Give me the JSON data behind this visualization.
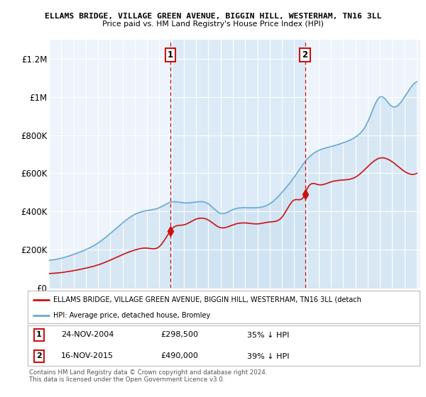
{
  "title": "ELLAMS BRIDGE, VILLAGE GREEN AVENUE, BIGGIN HILL, WESTERHAM, TN16 3LL",
  "subtitle": "Price paid vs. HM Land Registry's House Price Index (HPI)",
  "bg_color": "#eef4fb",
  "hpi_color": "#6aaad4",
  "hpi_fill_color": "#c8dff0",
  "price_color": "#cc1111",
  "vline_color": "#cc1111",
  "shade_color": "#daeaf7",
  "ylim": [
    0,
    1300000
  ],
  "yticks": [
    0,
    200000,
    400000,
    600000,
    800000,
    1000000,
    1200000
  ],
  "ytick_labels": [
    "£0",
    "£200K",
    "£400K",
    "£600K",
    "£800K",
    "£1M",
    "£1.2M"
  ],
  "sale1_date": 2004.9,
  "sale1_price": 298500,
  "sale2_date": 2015.88,
  "sale2_price": 490000,
  "legend_entry1": "ELLAMS BRIDGE, VILLAGE GREEN AVENUE, BIGGIN HILL, WESTERHAM, TN16 3LL (detach",
  "legend_entry2": "HPI: Average price, detached house, Bromley",
  "copyright": "Contains HM Land Registry data © Crown copyright and database right 2024.\nThis data is licensed under the Open Government Licence v3.0.",
  "hpi_keypoints_x": [
    1995,
    1996,
    1997,
    1998,
    1999,
    2000,
    2001,
    2002,
    2003,
    2004,
    2005,
    2006,
    2007,
    2008,
    2009,
    2010,
    2011,
    2012,
    2013,
    2014,
    2015,
    2016,
    2017,
    2018,
    2019,
    2020,
    2021,
    2022,
    2023,
    2024,
    2025
  ],
  "hpi_keypoints_y": [
    145000,
    155000,
    175000,
    200000,
    235000,
    285000,
    340000,
    385000,
    405000,
    420000,
    450000,
    445000,
    450000,
    440000,
    390000,
    410000,
    420000,
    420000,
    440000,
    500000,
    580000,
    670000,
    720000,
    740000,
    760000,
    790000,
    870000,
    1000000,
    950000,
    1000000,
    1080000
  ],
  "price_keypoints_x": [
    1995,
    1996,
    1997,
    1998,
    1999,
    2000,
    2001,
    2002,
    2003,
    2004,
    2004.9,
    2005,
    2006,
    2007,
    2008,
    2009,
    2010,
    2011,
    2012,
    2013,
    2014,
    2015,
    2015.88,
    2016,
    2017,
    2018,
    2019,
    2020,
    2021,
    2022,
    2023,
    2024,
    2025
  ],
  "price_keypoints_y": [
    75000,
    80000,
    90000,
    103000,
    120000,
    145000,
    174000,
    198000,
    208000,
    216000,
    298500,
    307000,
    330000,
    360000,
    355000,
    315000,
    330000,
    340000,
    335000,
    345000,
    370000,
    460000,
    490000,
    510000,
    540000,
    555000,
    565000,
    580000,
    635000,
    680000,
    660000,
    610000,
    600000
  ]
}
